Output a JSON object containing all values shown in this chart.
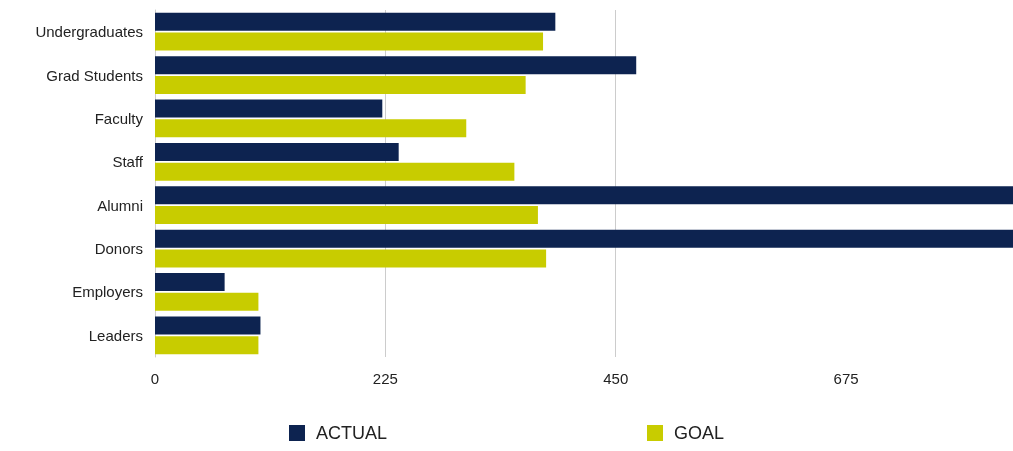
{
  "chart_data": {
    "type": "bar",
    "orientation": "horizontal",
    "categories": [
      "Undergraduates",
      "Grad Students",
      "Faculty",
      "Staff",
      "Alumni",
      "Donors",
      "Employers",
      "Leaders"
    ],
    "series": [
      {
        "name": "ACTUAL",
        "color": "#0d2350",
        "values": [
          391,
          470,
          222,
          238,
          838,
          838,
          68,
          103
        ]
      },
      {
        "name": "GOAL",
        "color": "#c8cc00",
        "values": [
          379,
          362,
          304,
          351,
          374,
          382,
          101,
          101
        ]
      }
    ],
    "xlim": [
      0,
      838
    ],
    "xticks": [
      0,
      225,
      450,
      675
    ],
    "grid": "x",
    "legend": "bottom"
  }
}
